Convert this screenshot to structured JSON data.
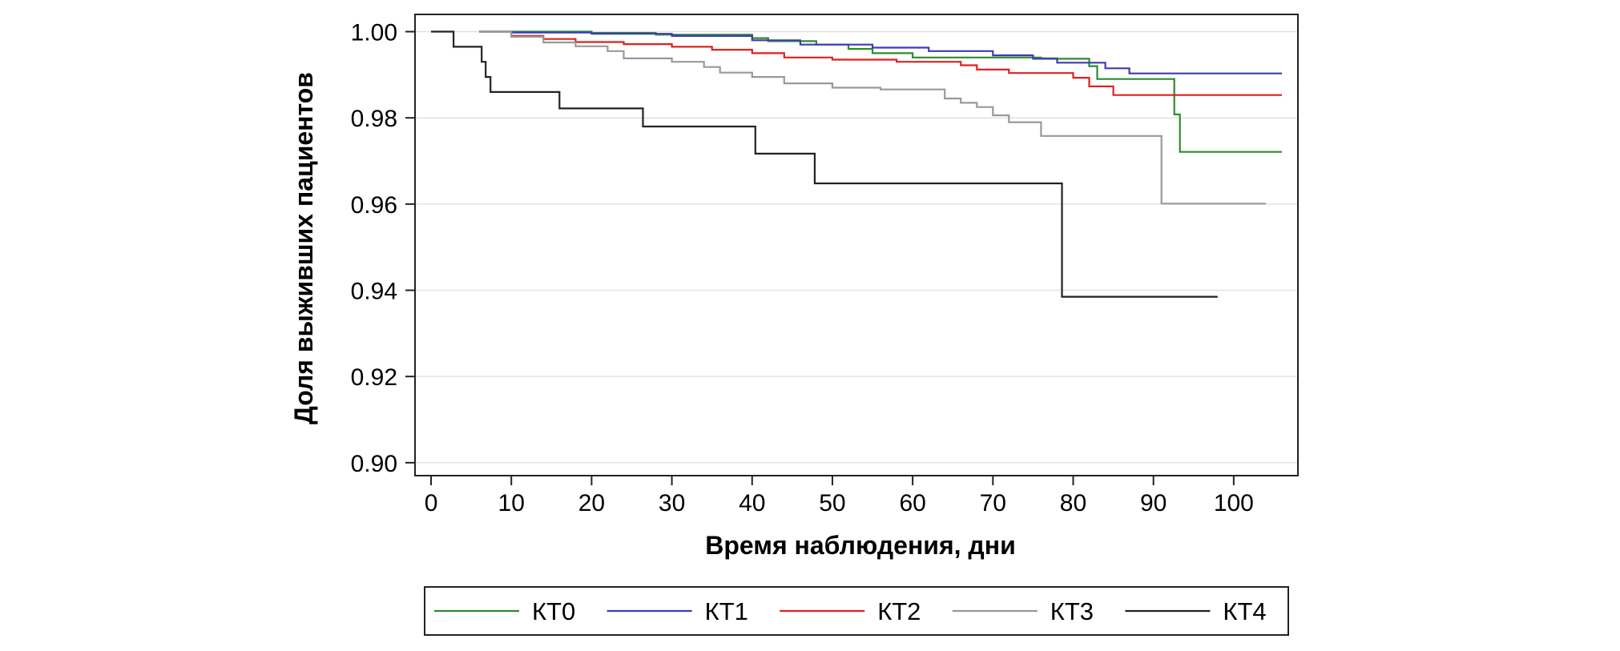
{
  "chart_data": {
    "type": "line",
    "title": "",
    "xlabel": "Время наблюдения, дни",
    "ylabel": "Доля выживших пациентов",
    "xlim": [
      -2,
      108
    ],
    "ylim": [
      0.897,
      1.004
    ],
    "xticks": [
      0,
      10,
      20,
      30,
      40,
      50,
      60,
      70,
      80,
      90,
      100
    ],
    "xtick_labels": [
      "0",
      "10",
      "20",
      "30",
      "40",
      "50",
      "60",
      "70",
      "80",
      "90",
      "100"
    ],
    "yticks": [
      0.9,
      0.92,
      0.94,
      0.96,
      0.98,
      1.0
    ],
    "ytick_labels": [
      "0.90",
      "0.92",
      "0.94",
      "0.96",
      "0.98",
      "1.00"
    ],
    "grid": "horizontal",
    "legend_position": "bottom",
    "step": true,
    "series": [
      {
        "name": "КТ0",
        "color": "#2e8b2e",
        "x": [
          6,
          20,
          28,
          40,
          42,
          48,
          52,
          55,
          60,
          76,
          78,
          82,
          83,
          92.6,
          93.3,
          106
        ],
        "y": [
          1.0,
          0.9997,
          0.9993,
          0.9985,
          0.9978,
          0.997,
          0.996,
          0.995,
          0.994,
          0.9938,
          0.9937,
          0.992,
          0.989,
          0.9808,
          0.9721,
          0.9721
        ]
      },
      {
        "name": "КТ1",
        "color": "#3c3cb0",
        "x": [
          6,
          10,
          20,
          30,
          40,
          46,
          55,
          62,
          70,
          75,
          78,
          84,
          87,
          106
        ],
        "y": [
          1.0,
          0.9998,
          0.9995,
          0.999,
          0.998,
          0.997,
          0.9963,
          0.9955,
          0.9945,
          0.9937,
          0.9928,
          0.9915,
          0.9903,
          0.9903
        ]
      },
      {
        "name": "КТ2",
        "color": "#e02020",
        "x": [
          6,
          10,
          14,
          18,
          24,
          30,
          35,
          40,
          44,
          50,
          58,
          66,
          68,
          72,
          75,
          80,
          82,
          85,
          106
        ],
        "y": [
          1.0,
          0.999,
          0.9983,
          0.9976,
          0.9971,
          0.9965,
          0.9958,
          0.995,
          0.994,
          0.9935,
          0.993,
          0.9922,
          0.9912,
          0.9904,
          0.9904,
          0.9893,
          0.9873,
          0.9853,
          0.9853
        ]
      },
      {
        "name": "КТ3",
        "color": "#999999",
        "x": [
          6,
          10,
          14,
          18,
          22,
          24,
          30,
          34,
          36,
          40,
          44,
          50,
          56,
          64,
          66,
          68,
          70,
          72,
          76,
          80,
          91,
          104
        ],
        "y": [
          1.0,
          0.9988,
          0.9975,
          0.9966,
          0.9955,
          0.9938,
          0.993,
          0.9918,
          0.9905,
          0.9895,
          0.988,
          0.987,
          0.9866,
          0.9845,
          0.9835,
          0.9825,
          0.9806,
          0.979,
          0.9758,
          0.9758,
          0.9601,
          0.9601
        ]
      },
      {
        "name": "КТ4",
        "color": "#222222",
        "x": [
          0,
          2.8,
          6.3,
          6.8,
          7.4,
          16,
          26.4,
          40.4,
          47.8,
          78.6,
          98
        ],
        "y": [
          1.0,
          0.9965,
          0.993,
          0.9895,
          0.986,
          0.9822,
          0.978,
          0.9717,
          0.9648,
          0.9385,
          0.9385
        ]
      }
    ]
  }
}
